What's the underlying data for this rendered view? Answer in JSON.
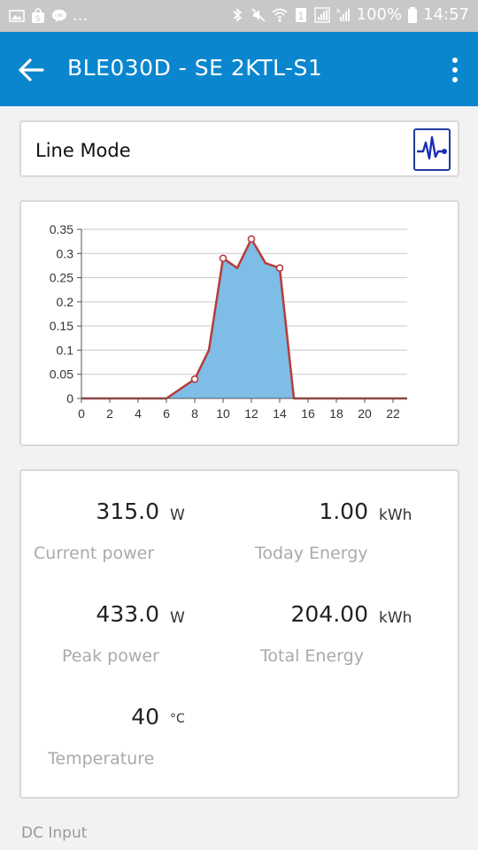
{
  "status_bar": {
    "notifications": [
      "image-icon",
      "shop-icon",
      "line-icon"
    ],
    "overflow": "...",
    "battery": "100%",
    "time": "14:57"
  },
  "app_bar": {
    "title": "BLE030D - SE 2KTL-S1"
  },
  "mode": {
    "label": "Line Mode"
  },
  "chart_data": {
    "type": "area",
    "title": "",
    "xlabel": "",
    "ylabel": "",
    "x": [
      0,
      2,
      4,
      6,
      8,
      9,
      10,
      11,
      12,
      13,
      14,
      15,
      16,
      18,
      20,
      22,
      23
    ],
    "values": [
      0,
      0,
      0,
      0,
      0.04,
      0.1,
      0.29,
      0.27,
      0.33,
      0.28,
      0.27,
      0,
      0,
      0,
      0,
      0,
      0
    ],
    "markers_at_x": [
      8,
      10,
      12,
      14
    ],
    "xlim": [
      0,
      23
    ],
    "ylim": [
      0,
      0.35
    ],
    "x_ticks": [
      "0",
      "2",
      "4",
      "6",
      "8",
      "10",
      "12",
      "14",
      "16",
      "18",
      "20",
      "22"
    ],
    "y_ticks": [
      "0",
      "0.05",
      "0.1",
      "0.15",
      "0.2",
      "0.25",
      "0.3",
      "0.35"
    ],
    "grid": true,
    "fill_color": "#7dbde6",
    "line_color": "#b83b3b"
  },
  "stats": {
    "current_power": {
      "value": "315.0",
      "unit": "W",
      "label": "Current power"
    },
    "today_energy": {
      "value": "1.00",
      "unit": "kWh",
      "label": "Today Energy"
    },
    "peak_power": {
      "value": "433.0",
      "unit": "W",
      "label": "Peak power"
    },
    "total_energy": {
      "value": "204.00",
      "unit": "kWh",
      "label": "Total Energy"
    },
    "temperature": {
      "value": "40",
      "unit": "°C",
      "label": "Temperature"
    }
  },
  "footer": {
    "section_label": "DC Input"
  },
  "colors": {
    "app_bar": "#0a86cf",
    "status_bar": "#c8c8c8"
  }
}
